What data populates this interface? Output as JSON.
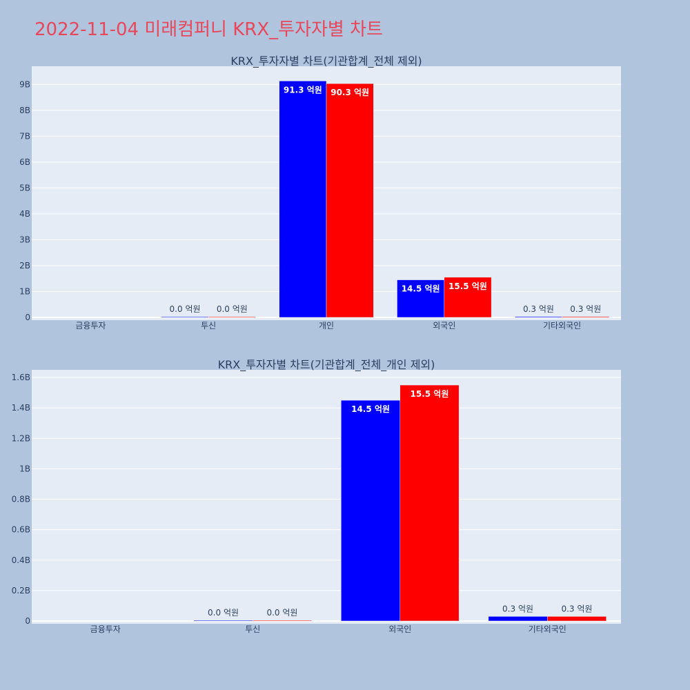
{
  "page": {
    "title": "2022-11-04 미래컴퍼니 KRX_투자자별 차트",
    "background": "#b0c4de",
    "title_color": "#e8475a"
  },
  "colors": {
    "plot_bg": "#e5ecf6",
    "grid": "#ffffff",
    "series1": "#0000ff",
    "series2": "#ff0000"
  },
  "chart_data": [
    {
      "type": "bar",
      "title": "KRX_투자자별 차트(기관합계_전체 제외)",
      "categories": [
        "금융투자",
        "투신",
        "개인",
        "외국인",
        "기타외국인"
      ],
      "ylim": [
        0,
        9.7
      ],
      "yticks": [
        0,
        1,
        2,
        3,
        4,
        5,
        6,
        7,
        8,
        9
      ],
      "ytick_labels": [
        "0",
        "1B",
        "2B",
        "3B",
        "4B",
        "5B",
        "6B",
        "7B",
        "8B",
        "9B"
      ],
      "series": [
        {
          "color": "#0000ff",
          "values": [
            null,
            0.002,
            9.13,
            1.45,
            0.03
          ],
          "labels": [
            "",
            "0.0 억원",
            "91.3 억원",
            "14.5 억원",
            "0.3 억원"
          ]
        },
        {
          "color": "#ff0000",
          "values": [
            null,
            0.002,
            9.03,
            1.55,
            0.03
          ],
          "labels": [
            "",
            "0.0 억원",
            "90.3 억원",
            "15.5 억원",
            "0.3 억원"
          ]
        }
      ]
    },
    {
      "type": "bar",
      "title": "KRX_투자자별 차트(기관합계_전체_개인 제외)",
      "categories": [
        "금융투자",
        "투신",
        "외국인",
        "기타외국인"
      ],
      "ylim": [
        0,
        1.65
      ],
      "yticks": [
        0,
        0.2,
        0.4,
        0.6,
        0.8,
        1,
        1.2,
        1.4,
        1.6
      ],
      "ytick_labels": [
        "0",
        "0.2B",
        "0.4B",
        "0.6B",
        "0.8B",
        "1B",
        "1.2B",
        "1.4B",
        "1.6B"
      ],
      "series": [
        {
          "color": "#0000ff",
          "values": [
            null,
            0.002,
            1.45,
            0.03
          ],
          "labels": [
            "",
            "0.0 억원",
            "14.5 억원",
            "0.3 억원"
          ]
        },
        {
          "color": "#ff0000",
          "values": [
            null,
            0.002,
            1.55,
            0.03
          ],
          "labels": [
            "",
            "0.0 억원",
            "15.5 억원",
            "0.3 억원"
          ]
        }
      ]
    }
  ]
}
